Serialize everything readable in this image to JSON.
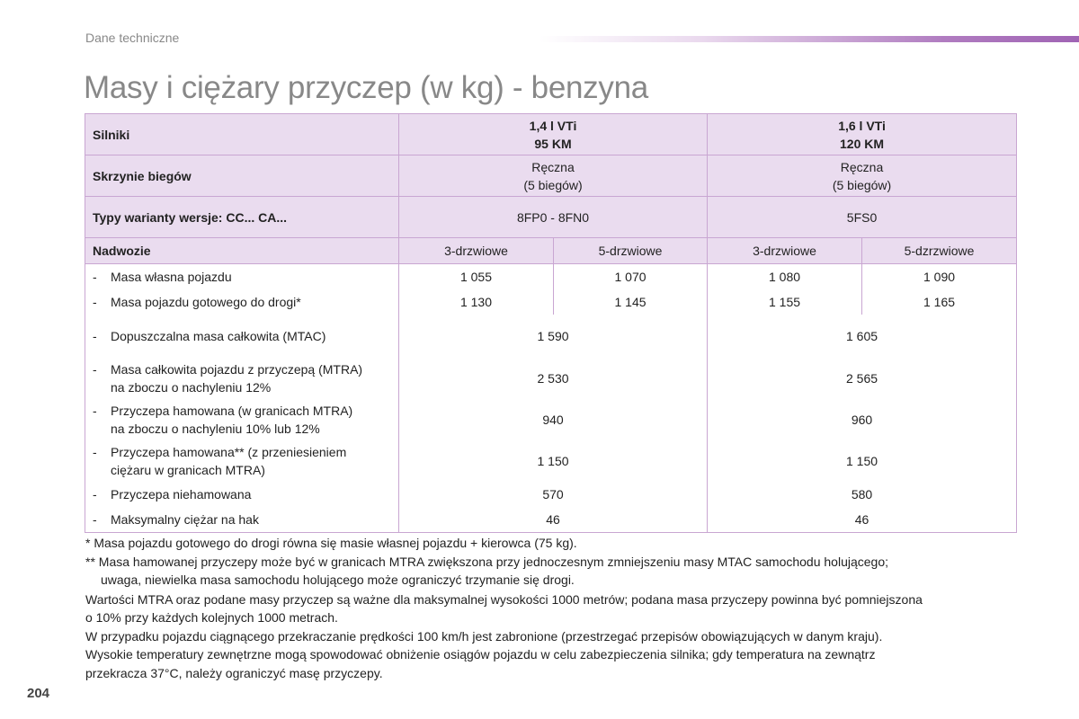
{
  "header": {
    "section": "Dane techniczne",
    "title": "Masy i ciężary przyczep (w kg) - benzyna"
  },
  "table": {
    "engines": {
      "label": "Silniki",
      "e1_line1": "1,4 l VTi",
      "e1_line2": "95 KM",
      "e2_line1": "1,6 l VTi",
      "e2_line2": "120 KM"
    },
    "gearbox": {
      "label": "Skrzynie biegów",
      "e1_line1": "Ręczna",
      "e1_line2": "(5 biegów)",
      "e2_line1": "Ręczna",
      "e2_line2": "(5 biegów)"
    },
    "types": {
      "label": "Typy warianty wersje: CC... CA...",
      "e1": "8FP0 - 8FN0",
      "e2": "5FS0"
    },
    "body": {
      "label": "Nadwozie",
      "c1": "3-drzwiowe",
      "c2": "5-drzwiowe",
      "c3": "3-drzwiowe",
      "c4": "5-dzrzwiowe"
    },
    "dash": "-",
    "rows": [
      {
        "label": "Masa własna pojazdu",
        "values": [
          "1 055",
          "1 070",
          "1 080",
          "1 090"
        ]
      },
      {
        "label": "Masa pojazdu gotowego do drogi*",
        "values": [
          "1 130",
          "1 145",
          "1 155",
          "1 165"
        ]
      },
      {
        "label": "Dopuszczalna masa całkowita (MTAC)",
        "values": [
          "1 590",
          "1 605"
        ]
      },
      {
        "label_line1": "Masa całkowita pojazdu z przyczepą (MTRA)",
        "label_line2": "na zboczu o nachyleniu 12%",
        "values": [
          "2 530",
          "2 565"
        ]
      },
      {
        "label_line1": "Przyczepa hamowana (w granicach MTRA)",
        "label_line2": "na zboczu o nachyleniu 10% lub 12%",
        "values": [
          "940",
          "960"
        ]
      },
      {
        "label_line1": "Przyczepa hamowana** (z przeniesieniem",
        "label_line2": "ciężaru w granicach MTRA)",
        "values": [
          "1 150",
          "1 150"
        ]
      },
      {
        "label": "Przyczepa niehamowana",
        "values": [
          "570",
          "580"
        ]
      },
      {
        "label": "Maksymalny ciężar na hak",
        "values": [
          "46",
          "46"
        ]
      }
    ]
  },
  "notes": {
    "n1": "* Masa pojazdu gotowego do drogi równa się masie własnej pojazdu + kierowca (75 kg).",
    "n2_line1": "** Masa hamowanej przyczepy może być w granicach MTRA zwiększona przy jednoczesnym zmniejszeniu masy MTAC samochodu holującego;",
    "n2_line2": "uwaga, niewielka masa samochodu holującego może ograniczyć trzymanie się drogi.",
    "n3_line1": "Wartości MTRA oraz podane masy przyczep są ważne dla maksymalnej wysokości 1000 metrów; podana masa przyczepy powinna być pomniejszona",
    "n3_line2": "o 10% przy każdych kolejnych 1000 metrach.",
    "n4": "W przypadku pojazdu ciągnącego przekraczanie prędkości 100 km/h jest zabronione (przestrzegać przepisów obowiązujących w danym kraju).",
    "n5_line1": "Wysokie temperatury zewnętrzne mogą spowodować obniżenie osiągów pojazdu w celu zabezpieczenia silnika; gdy temperatura na zewnątrz",
    "n5_line2": "przekracza 37°C, należy ograniczyć masę przyczepy."
  },
  "footer": {
    "page_number": "204"
  },
  "colors": {
    "header_fill": "#eadcef",
    "border": "#c9a6d2",
    "accent": "#a064b4"
  }
}
